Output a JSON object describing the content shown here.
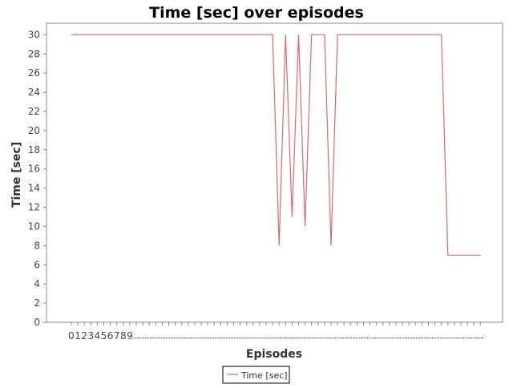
{
  "chart_data": {
    "type": "line",
    "title": "Time [sec] over episodes",
    "xlabel": "Episodes",
    "ylabel": "Time [sec]",
    "ylim": [
      0,
      31.2
    ],
    "yticks": [
      0,
      2,
      4,
      6,
      8,
      10,
      12,
      14,
      16,
      18,
      20,
      22,
      24,
      26,
      28,
      30
    ],
    "x_tick_labels_shown": [
      "0",
      "1",
      "2",
      "3",
      "4",
      "5",
      "6",
      "7",
      "8",
      "9"
    ],
    "grid": false,
    "legend_position": "bottom-center",
    "series": [
      {
        "name": "Time [sec]",
        "color": "#e06666",
        "x": [
          0,
          1,
          2,
          3,
          4,
          5,
          6,
          7,
          8,
          9,
          10,
          11,
          12,
          13,
          14,
          15,
          16,
          17,
          18,
          19,
          20,
          21,
          22,
          23,
          24,
          25,
          26,
          27,
          28,
          29,
          30,
          31,
          32,
          33,
          34,
          35,
          36,
          37,
          38,
          39,
          40,
          41,
          42,
          43,
          44,
          45,
          46,
          47,
          48,
          49,
          50,
          51,
          52,
          53,
          54,
          55,
          56,
          57,
          58,
          59,
          60,
          61,
          62,
          63
        ],
        "values": [
          30,
          30,
          30,
          30,
          30,
          30,
          30,
          30,
          30,
          30,
          30,
          30,
          30,
          30,
          30,
          30,
          30,
          30,
          30,
          30,
          30,
          30,
          30,
          30,
          30,
          30,
          30,
          30,
          30,
          30,
          30,
          30,
          8,
          30,
          11,
          30,
          10,
          30,
          30,
          30,
          8,
          30,
          30,
          30,
          30,
          30,
          30,
          30,
          30,
          30,
          30,
          30,
          30,
          30,
          30,
          30,
          30,
          30,
          7,
          7,
          7,
          7,
          7,
          7
        ]
      }
    ]
  }
}
